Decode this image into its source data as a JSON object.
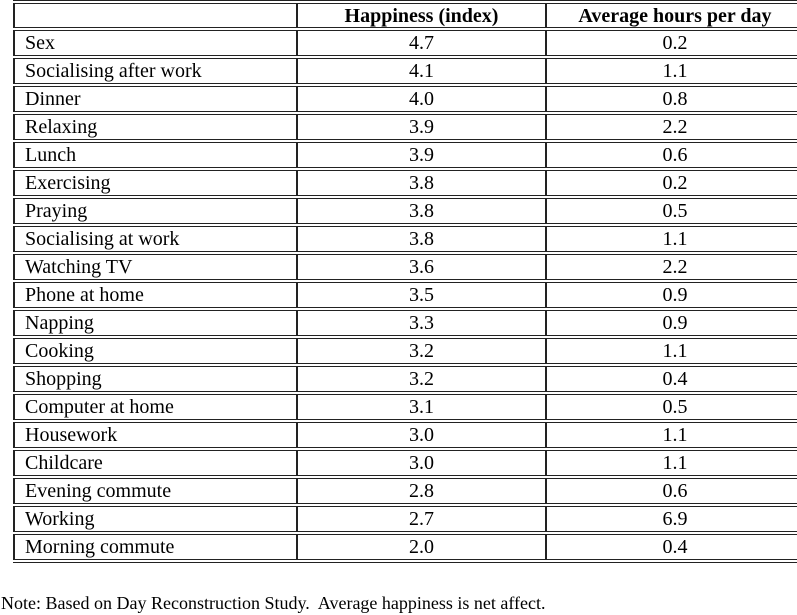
{
  "table": {
    "columns": [
      "",
      "Happiness (index)",
      "Average hours per day"
    ],
    "rows": [
      {
        "activity": "Sex",
        "happiness": "4.7",
        "hours": "0.2"
      },
      {
        "activity": "Socialising after work",
        "happiness": "4.1",
        "hours": "1.1"
      },
      {
        "activity": "Dinner",
        "happiness": "4.0",
        "hours": "0.8"
      },
      {
        "activity": "Relaxing",
        "happiness": "3.9",
        "hours": "2.2"
      },
      {
        "activity": "Lunch",
        "happiness": "3.9",
        "hours": "0.6"
      },
      {
        "activity": "Exercising",
        "happiness": "3.8",
        "hours": "0.2"
      },
      {
        "activity": "Praying",
        "happiness": "3.8",
        "hours": "0.5"
      },
      {
        "activity": "Socialising at work",
        "happiness": "3.8",
        "hours": "1.1"
      },
      {
        "activity": "Watching TV",
        "happiness": "3.6",
        "hours": "2.2"
      },
      {
        "activity": "Phone at home",
        "happiness": "3.5",
        "hours": "0.9"
      },
      {
        "activity": "Napping",
        "happiness": "3.3",
        "hours": "0.9"
      },
      {
        "activity": "Cooking",
        "happiness": "3.2",
        "hours": "1.1"
      },
      {
        "activity": "Shopping",
        "happiness": "3.2",
        "hours": "0.4"
      },
      {
        "activity": "Computer at home",
        "happiness": "3.1",
        "hours": "0.5"
      },
      {
        "activity": "Housework",
        "happiness": "3.0",
        "hours": "1.1"
      },
      {
        "activity": "Childcare",
        "happiness": "3.0",
        "hours": "1.1"
      },
      {
        "activity": "Evening commute",
        "happiness": "2.8",
        "hours": "0.6"
      },
      {
        "activity": "Working",
        "happiness": "2.7",
        "hours": "6.9"
      },
      {
        "activity": "Morning commute",
        "happiness": "2.0",
        "hours": "0.4"
      }
    ]
  },
  "note": "Note: Based on Day Reconstruction Study.  Average happiness is net affect.",
  "colors": {
    "border": "#222222",
    "text": "#000000",
    "background": "#ffffff"
  }
}
